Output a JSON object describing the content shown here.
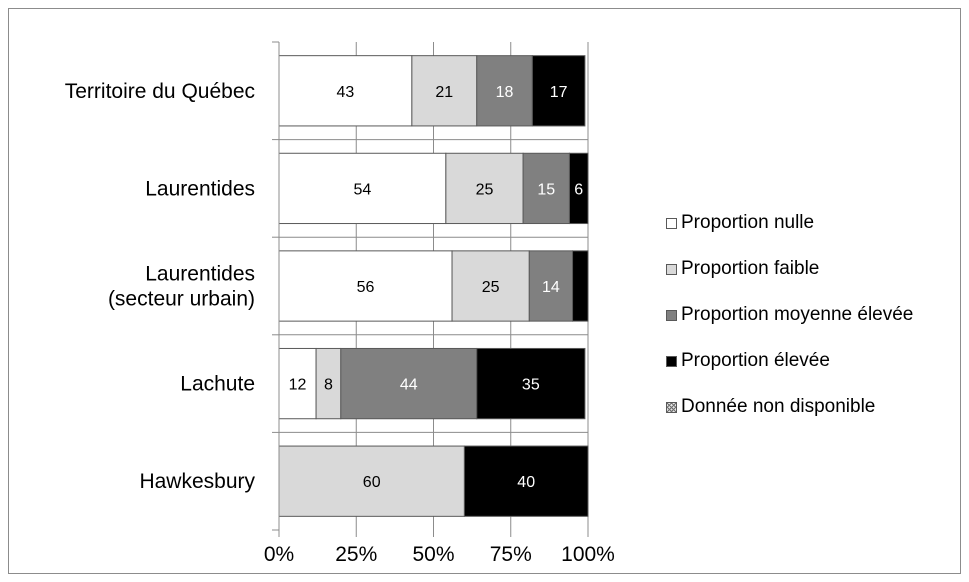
{
  "chart_data": {
    "type": "bar",
    "orientation": "horizontal",
    "stacked": true,
    "percent_stacked": true,
    "categories": [
      "Territoire du Québec",
      "Laurentides",
      "Laurentides (secteur urbain)",
      "Lachute",
      "Hawkesbury"
    ],
    "category_label_lines": [
      [
        "Territoire du Québec"
      ],
      [
        "Laurentides"
      ],
      [
        "Laurentides",
        "(secteur urbain)"
      ],
      [
        "Lachute"
      ],
      [
        "Hawkesbury"
      ]
    ],
    "series": [
      {
        "name": "Proportion nulle",
        "color": "#ffffff",
        "label_color": "#000000",
        "values": [
          43,
          54,
          56,
          12,
          0
        ],
        "labels": [
          "43",
          "54",
          "56",
          "12",
          ""
        ]
      },
      {
        "name": "Proportion faible",
        "color": "#d9d9d9",
        "label_color": "#000000",
        "values": [
          21,
          25,
          25,
          8,
          60
        ],
        "labels": [
          "21",
          "25",
          "25",
          "8",
          "60"
        ]
      },
      {
        "name": "Proportion moyenne élevée",
        "color": "#808080",
        "label_color": "#ffffff",
        "values": [
          18,
          15,
          14,
          44,
          0
        ],
        "labels": [
          "18",
          "15",
          "14",
          "44",
          ""
        ]
      },
      {
        "name": "Proportion élevée",
        "color": "#000000",
        "label_color": "#ffffff",
        "values": [
          17,
          6,
          5,
          35,
          40
        ],
        "labels": [
          "17",
          "6",
          "",
          "35",
          "40"
        ]
      },
      {
        "name": "Donnée non disponible",
        "color": "#d9d9d9",
        "pattern": "crosshatch",
        "values": [
          0,
          0,
          0,
          0,
          0
        ],
        "labels": [
          "",
          "",
          "",
          "",
          ""
        ]
      }
    ],
    "x_ticks": [
      "0%",
      "25%",
      "50%",
      "75%",
      "100%"
    ],
    "xlim": [
      0,
      100
    ],
    "grid": true,
    "legend_position": "right"
  }
}
